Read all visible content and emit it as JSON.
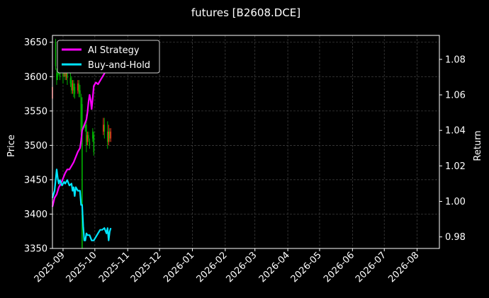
{
  "chart_data": {
    "type": "line",
    "title": "futures [B2608.DCE]",
    "ylabel_left": "Price",
    "ylabel_right": "Return",
    "ylim_left": [
      3350,
      3660
    ],
    "ylim_right": [
      0.9735,
      1.0935
    ],
    "xlim": [
      "2025-08-22",
      "2026-08-22"
    ],
    "x_ticks": [
      "2025-09",
      "2025-10",
      "2025-11",
      "2025-12",
      "2026-01",
      "2026-02",
      "2026-03",
      "2026-04",
      "2026-05",
      "2026-06",
      "2026-07",
      "2026-08"
    ],
    "y_ticks_left": [
      3350,
      3400,
      3450,
      3500,
      3550,
      3600,
      3650
    ],
    "y_ticks_right": [
      0.98,
      1.0,
      1.02,
      1.04,
      1.06,
      1.08
    ],
    "grid": true,
    "legend_placement": "top-left",
    "colors": {
      "ai": "#ff00ff",
      "bh": "#00e5ff",
      "up": "#ff2020",
      "down": "#00b000",
      "grid": "#444444"
    },
    "series": [
      {
        "name": "AI Strategy",
        "axis": "right",
        "points": [
          [
            "2025-08-22",
            0.997
          ],
          [
            "2025-08-24",
            1.002
          ],
          [
            "2025-08-26",
            1.004
          ],
          [
            "2025-08-28",
            1.008
          ],
          [
            "2025-08-30",
            1.01
          ],
          [
            "2025-09-01",
            1.013
          ],
          [
            "2025-09-03",
            1.016
          ],
          [
            "2025-09-05",
            1.018
          ],
          [
            "2025-09-07",
            1.018
          ],
          [
            "2025-09-09",
            1.02
          ],
          [
            "2025-09-11",
            1.022
          ],
          [
            "2025-09-13",
            1.025
          ],
          [
            "2025-09-15",
            1.028
          ],
          [
            "2025-09-17",
            1.03
          ],
          [
            "2025-09-18",
            1.034
          ],
          [
            "2025-09-19",
            1.04
          ],
          [
            "2025-09-21",
            1.043
          ],
          [
            "2025-09-23",
            1.046
          ],
          [
            "2025-09-24",
            1.05
          ],
          [
            "2025-09-25",
            1.056
          ],
          [
            "2025-09-26",
            1.06
          ],
          [
            "2025-09-27",
            1.057
          ],
          [
            "2025-09-28",
            1.052
          ],
          [
            "2025-09-29",
            1.058
          ],
          [
            "2025-09-30",
            1.065
          ],
          [
            "2025-10-02",
            1.067
          ],
          [
            "2025-10-04",
            1.066
          ],
          [
            "2025-10-06",
            1.068
          ],
          [
            "2025-10-08",
            1.07
          ],
          [
            "2025-10-10",
            1.072
          ],
          [
            "2025-10-12",
            1.075
          ],
          [
            "2025-10-14",
            1.08
          ],
          [
            "2025-10-16",
            1.087
          ]
        ]
      },
      {
        "name": "Buy-and-Hold",
        "axis": "right",
        "points": [
          [
            "2025-08-22",
            1.002
          ],
          [
            "2025-08-24",
            1.006
          ],
          [
            "2025-08-25",
            1.012
          ],
          [
            "2025-08-26",
            1.018
          ],
          [
            "2025-08-27",
            1.013
          ],
          [
            "2025-08-28",
            1.01
          ],
          [
            "2025-08-29",
            1.012
          ],
          [
            "2025-08-31",
            1.009
          ],
          [
            "2025-09-02",
            1.011
          ],
          [
            "2025-09-03",
            1.01
          ],
          [
            "2025-09-05",
            1.012
          ],
          [
            "2025-09-07",
            1.009
          ],
          [
            "2025-09-09",
            1.01
          ],
          [
            "2025-09-10",
            1.006
          ],
          [
            "2025-09-11",
            1.008
          ],
          [
            "2025-09-12",
            1.003
          ],
          [
            "2025-09-13",
            1.008
          ],
          [
            "2025-09-15",
            1.006
          ],
          [
            "2025-09-17",
            1.006
          ],
          [
            "2025-09-18",
            0.998
          ],
          [
            "2025-09-19",
            0.998
          ],
          [
            "2025-09-20",
            0.986
          ],
          [
            "2025-09-21",
            0.978
          ],
          [
            "2025-09-22",
            0.978
          ],
          [
            "2025-09-23",
            0.982
          ],
          [
            "2025-09-24",
            0.981
          ],
          [
            "2025-09-26",
            0.981
          ],
          [
            "2025-09-28",
            0.978
          ],
          [
            "2025-09-30",
            0.978
          ],
          [
            "2025-10-02",
            0.98
          ],
          [
            "2025-10-04",
            0.982
          ],
          [
            "2025-10-06",
            0.984
          ],
          [
            "2025-10-08",
            0.984
          ],
          [
            "2025-10-10",
            0.985
          ],
          [
            "2025-10-12",
            0.982
          ],
          [
            "2025-10-13",
            0.985
          ],
          [
            "2025-10-14",
            0.978
          ],
          [
            "2025-10-15",
            0.983
          ],
          [
            "2025-10-16",
            0.985
          ]
        ]
      }
    ],
    "candles": [
      {
        "date": "2025-08-22",
        "open": 3568,
        "close": 3585,
        "low": 3560,
        "high": 3595
      },
      {
        "date": "2025-08-25",
        "open": 3650,
        "close": 3615,
        "low": 3610,
        "high": 3655
      },
      {
        "date": "2025-08-26",
        "open": 3605,
        "close": 3595,
        "low": 3588,
        "high": 3612
      },
      {
        "date": "2025-08-27",
        "open": 3612,
        "close": 3600,
        "low": 3595,
        "high": 3620
      },
      {
        "date": "2025-08-28",
        "open": 3620,
        "close": 3608,
        "low": 3603,
        "high": 3628
      },
      {
        "date": "2025-08-29",
        "open": 3610,
        "close": 3600,
        "low": 3595,
        "high": 3618
      },
      {
        "date": "2025-09-01",
        "open": 3612,
        "close": 3600,
        "low": 3590,
        "high": 3620
      },
      {
        "date": "2025-09-02",
        "open": 3605,
        "close": 3610,
        "low": 3600,
        "high": 3615
      },
      {
        "date": "2025-09-03",
        "open": 3610,
        "close": 3600,
        "low": 3595,
        "high": 3618
      },
      {
        "date": "2025-09-04",
        "open": 3600,
        "close": 3605,
        "low": 3595,
        "high": 3612
      },
      {
        "date": "2025-09-05",
        "open": 3610,
        "close": 3598,
        "low": 3588,
        "high": 3615
      },
      {
        "date": "2025-09-08",
        "open": 3598,
        "close": 3590,
        "low": 3585,
        "high": 3605
      },
      {
        "date": "2025-09-09",
        "open": 3595,
        "close": 3580,
        "low": 3575,
        "high": 3600
      },
      {
        "date": "2025-09-10",
        "open": 3580,
        "close": 3590,
        "low": 3575,
        "high": 3595
      },
      {
        "date": "2025-09-11",
        "open": 3590,
        "close": 3580,
        "low": 3570,
        "high": 3595
      },
      {
        "date": "2025-09-12",
        "open": 3585,
        "close": 3575,
        "low": 3568,
        "high": 3590
      },
      {
        "date": "2025-09-15",
        "open": 3580,
        "close": 3590,
        "low": 3575,
        "high": 3595
      },
      {
        "date": "2025-09-16",
        "open": 3590,
        "close": 3578,
        "low": 3570,
        "high": 3595
      },
      {
        "date": "2025-09-17",
        "open": 3580,
        "close": 3575,
        "low": 3570,
        "high": 3588
      },
      {
        "date": "2025-09-18",
        "open": 3570,
        "close": 3520,
        "low": 3515,
        "high": 3575
      },
      {
        "date": "2025-09-19",
        "open": 3560,
        "close": 3350,
        "low": 3340,
        "high": 3570
      },
      {
        "date": "2025-09-22",
        "open": 3530,
        "close": 3525,
        "low": 3520,
        "high": 3535
      },
      {
        "date": "2025-09-23",
        "open": 3530,
        "close": 3500,
        "low": 3490,
        "high": 3545
      },
      {
        "date": "2025-09-24",
        "open": 3505,
        "close": 3515,
        "low": 3500,
        "high": 3520
      },
      {
        "date": "2025-09-25",
        "open": 3515,
        "close": 3510,
        "low": 3505,
        "high": 3520
      },
      {
        "date": "2025-09-26",
        "open": 3505,
        "close": 3500,
        "low": 3495,
        "high": 3510
      },
      {
        "date": "2025-09-29",
        "open": 3520,
        "close": 3510,
        "low": 3505,
        "high": 3525
      },
      {
        "date": "2025-09-30",
        "open": 3515,
        "close": 3490,
        "low": 3485,
        "high": 3520
      },
      {
        "date": "2025-10-09",
        "open": 3520,
        "close": 3530,
        "low": 3515,
        "high": 3540
      },
      {
        "date": "2025-10-10",
        "open": 3530,
        "close": 3520,
        "low": 3510,
        "high": 3540
      },
      {
        "date": "2025-10-13",
        "open": 3520,
        "close": 3505,
        "low": 3495,
        "high": 3535
      },
      {
        "date": "2025-10-14",
        "open": 3505,
        "close": 3520,
        "low": 3500,
        "high": 3530
      },
      {
        "date": "2025-10-15",
        "open": 3520,
        "close": 3510,
        "low": 3505,
        "high": 3525
      },
      {
        "date": "2025-10-16",
        "open": 3510,
        "close": 3520,
        "low": 3505,
        "high": 3525
      }
    ]
  }
}
